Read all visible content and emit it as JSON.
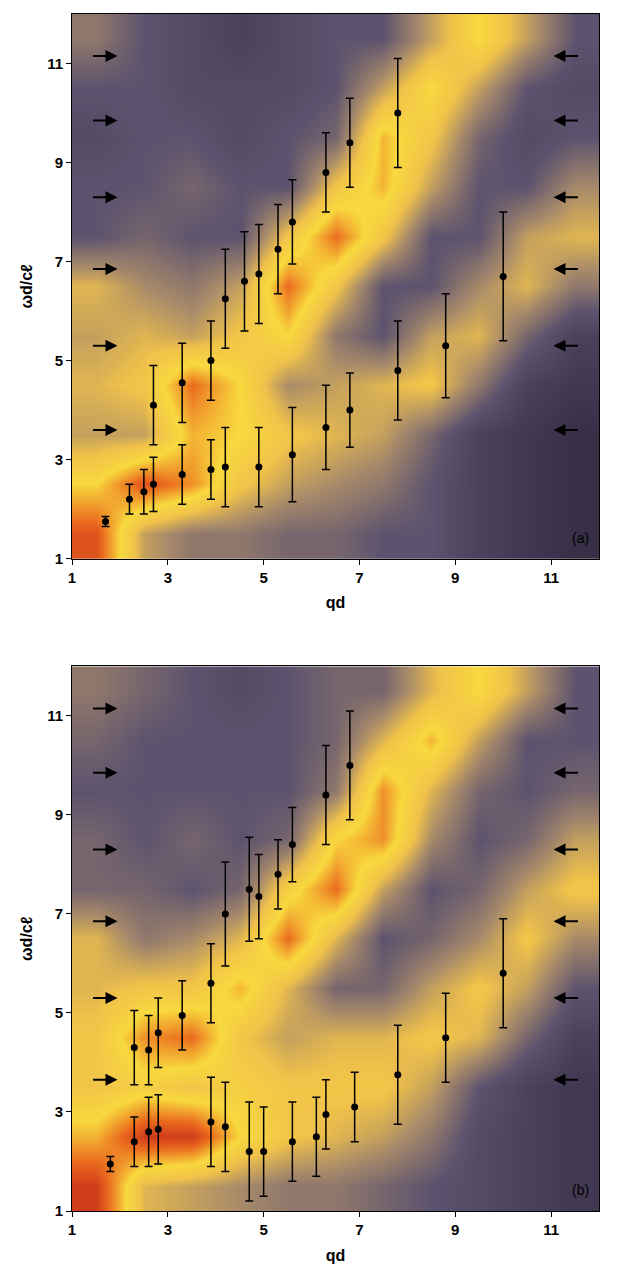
{
  "chart_data": [
    {
      "type": "scatter",
      "panel": "(a)",
      "x_label": "qd",
      "y_label": "ωd/cℓ",
      "xlim": [
        1,
        12
      ],
      "ylim": [
        1,
        12
      ],
      "xticks": [
        1,
        3,
        5,
        7,
        9,
        11
      ],
      "yticks": [
        1,
        3,
        5,
        7,
        9,
        11
      ],
      "heatmap": {
        "x": [
          1.5,
          2.5,
          3.5,
          4.5,
          5.5,
          6.5,
          7.5,
          8.5,
          9.5,
          10.5,
          11.5
        ],
        "y": [
          1.5,
          2.5,
          3.5,
          4.5,
          5.5,
          6.5,
          7.5,
          8.5,
          9.5,
          10.5,
          11.5
        ],
        "z": [
          [
            0.9,
            0.5,
            0.4,
            0.4,
            0.35,
            0.35,
            0.3,
            0.3,
            0.2,
            0.15,
            0.1
          ],
          [
            0.7,
            0.9,
            0.8,
            0.6,
            0.5,
            0.45,
            0.4,
            0.3,
            0.2,
            0.15,
            0.1
          ],
          [
            0.5,
            0.5,
            0.75,
            0.7,
            0.6,
            0.55,
            0.5,
            0.35,
            0.2,
            0.15,
            0.1
          ],
          [
            0.55,
            0.6,
            0.85,
            0.7,
            0.45,
            0.5,
            0.55,
            0.6,
            0.4,
            0.2,
            0.15
          ],
          [
            0.5,
            0.55,
            0.5,
            0.6,
            0.7,
            0.4,
            0.3,
            0.5,
            0.55,
            0.35,
            0.2
          ],
          [
            0.55,
            0.45,
            0.4,
            0.5,
            0.85,
            0.6,
            0.3,
            0.3,
            0.45,
            0.55,
            0.4
          ],
          [
            0.3,
            0.35,
            0.3,
            0.3,
            0.6,
            0.85,
            0.6,
            0.3,
            0.3,
            0.5,
            0.55
          ],
          [
            0.3,
            0.3,
            0.35,
            0.3,
            0.3,
            0.6,
            0.75,
            0.5,
            0.3,
            0.3,
            0.45
          ],
          [
            0.25,
            0.3,
            0.3,
            0.25,
            0.3,
            0.35,
            0.75,
            0.6,
            0.35,
            0.25,
            0.3
          ],
          [
            0.3,
            0.3,
            0.25,
            0.25,
            0.25,
            0.3,
            0.5,
            0.7,
            0.5,
            0.3,
            0.25
          ],
          [
            0.4,
            0.3,
            0.25,
            0.2,
            0.25,
            0.3,
            0.3,
            0.5,
            0.7,
            0.5,
            0.3
          ]
        ]
      },
      "arrows_y": [
        3.6,
        5.3,
        6.85,
        8.3,
        9.85,
        11.15
      ],
      "series": [
        {
          "x": [
            1.7,
            2.2,
            2.5,
            2.7,
            3.3,
            3.9,
            4.2,
            4.9,
            5.6,
            6.3,
            6.8,
            7.8,
            8.8,
            10.0
          ],
          "values": [
            1.75,
            2.2,
            2.35,
            2.5,
            2.7,
            2.8,
            2.85,
            2.85,
            3.1,
            3.65,
            4.0,
            4.8,
            5.3,
            6.7
          ],
          "error": [
            0.1,
            0.3,
            0.45,
            0.55,
            0.6,
            0.6,
            0.8,
            0.8,
            0.95,
            0.85,
            0.75,
            1.0,
            1.05,
            1.3
          ]
        },
        {
          "x": [
            2.7,
            3.3,
            3.9,
            4.2,
            4.6,
            4.9,
            5.3,
            5.6,
            6.3,
            6.8,
            7.8
          ],
          "values": [
            4.1,
            4.55,
            5.0,
            6.25,
            6.6,
            6.75,
            7.25,
            7.8,
            8.8,
            9.4,
            10.0
          ],
          "error": [
            0.8,
            0.8,
            0.8,
            1.0,
            1.0,
            1.0,
            0.9,
            0.85,
            0.8,
            0.9,
            1.1
          ]
        }
      ]
    },
    {
      "type": "scatter",
      "panel": "(b)",
      "x_label": "qd",
      "y_label": "ωd/cℓ",
      "xlim": [
        1,
        12
      ],
      "ylim": [
        1,
        12
      ],
      "xticks": [
        1,
        3,
        5,
        7,
        9,
        11
      ],
      "yticks": [
        1,
        3,
        5,
        7,
        9,
        11
      ],
      "heatmap": {
        "x": [
          1.5,
          2.5,
          3.5,
          4.5,
          5.5,
          6.5,
          7.5,
          8.5,
          9.5,
          10.5,
          11.5
        ],
        "y": [
          1.5,
          2.5,
          3.5,
          4.5,
          5.5,
          6.5,
          7.5,
          8.5,
          9.5,
          10.5,
          11.5
        ],
        "z": [
          [
            0.95,
            0.55,
            0.5,
            0.45,
            0.4,
            0.4,
            0.35,
            0.3,
            0.25,
            0.2,
            0.15
          ],
          [
            0.75,
            0.95,
            0.95,
            0.7,
            0.6,
            0.55,
            0.5,
            0.4,
            0.25,
            0.2,
            0.15
          ],
          [
            0.6,
            0.65,
            0.6,
            0.65,
            0.6,
            0.6,
            0.6,
            0.5,
            0.3,
            0.2,
            0.15
          ],
          [
            0.6,
            0.8,
            0.85,
            0.6,
            0.5,
            0.55,
            0.55,
            0.6,
            0.55,
            0.35,
            0.2
          ],
          [
            0.55,
            0.6,
            0.6,
            0.75,
            0.55,
            0.35,
            0.35,
            0.5,
            0.6,
            0.5,
            0.3
          ],
          [
            0.55,
            0.4,
            0.45,
            0.55,
            0.85,
            0.55,
            0.3,
            0.35,
            0.45,
            0.6,
            0.45
          ],
          [
            0.35,
            0.35,
            0.3,
            0.35,
            0.65,
            0.85,
            0.5,
            0.3,
            0.35,
            0.5,
            0.6
          ],
          [
            0.35,
            0.3,
            0.35,
            0.3,
            0.35,
            0.7,
            0.8,
            0.45,
            0.3,
            0.35,
            0.5
          ],
          [
            0.3,
            0.3,
            0.3,
            0.3,
            0.3,
            0.4,
            0.8,
            0.55,
            0.35,
            0.3,
            0.35
          ],
          [
            0.35,
            0.3,
            0.3,
            0.3,
            0.3,
            0.35,
            0.55,
            0.75,
            0.5,
            0.3,
            0.3
          ],
          [
            0.4,
            0.35,
            0.3,
            0.25,
            0.3,
            0.35,
            0.35,
            0.55,
            0.7,
            0.5,
            0.3
          ]
        ]
      },
      "arrows_y": [
        3.65,
        5.3,
        6.85,
        8.3,
        9.85,
        11.15
      ],
      "series": [
        {
          "x": [
            1.8,
            2.3,
            2.6,
            2.8,
            3.9,
            4.2,
            4.7,
            5.0,
            5.6,
            6.1,
            6.3,
            6.9,
            7.8,
            8.8,
            10.0
          ],
          "values": [
            1.95,
            2.4,
            2.6,
            2.65,
            2.8,
            2.7,
            2.2,
            2.2,
            2.4,
            2.5,
            2.95,
            3.1,
            3.75,
            4.5,
            5.8
          ],
          "error": [
            0.15,
            0.5,
            0.7,
            0.7,
            0.9,
            0.9,
            1.0,
            0.9,
            0.8,
            0.8,
            0.7,
            0.7,
            1.0,
            0.9,
            1.1
          ]
        },
        {
          "x": [
            2.3,
            2.6,
            2.8,
            3.3,
            3.9,
            4.2,
            4.7,
            4.9,
            5.3,
            5.6,
            6.3,
            6.8
          ],
          "values": [
            4.3,
            4.25,
            4.6,
            4.95,
            5.6,
            7.0,
            7.5,
            7.35,
            7.8,
            8.4,
            9.4,
            10.0
          ],
          "error": [
            0.75,
            0.7,
            0.7,
            0.7,
            0.8,
            1.05,
            1.05,
            0.85,
            0.7,
            0.75,
            1.0,
            1.1
          ]
        }
      ]
    }
  ]
}
